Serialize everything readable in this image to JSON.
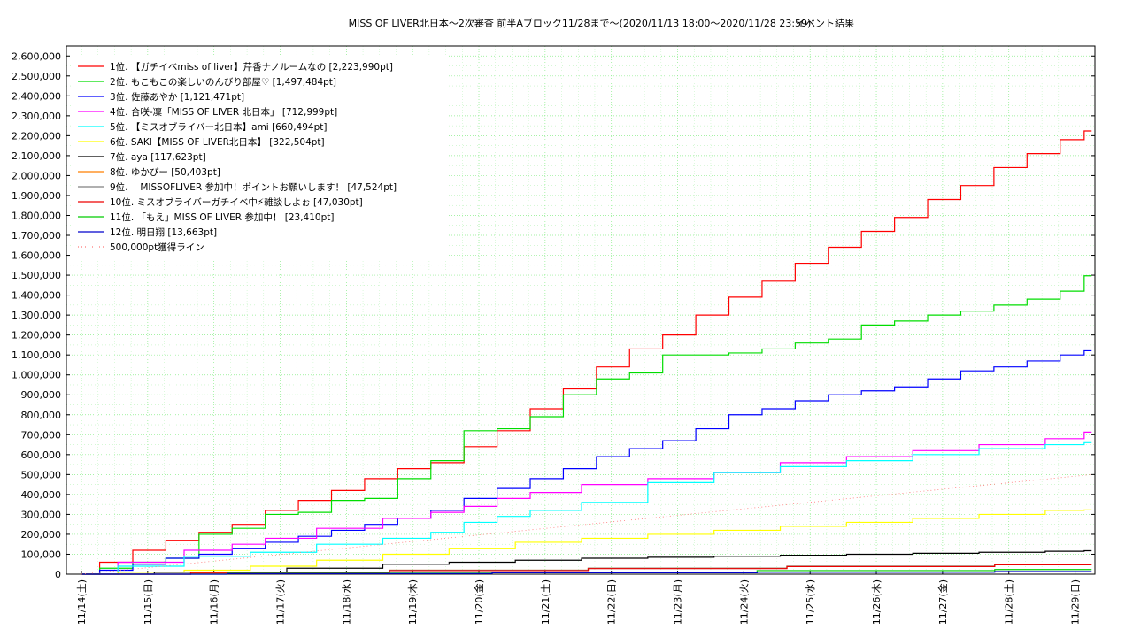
{
  "chart_data": {
    "type": "line",
    "title": "MISS OF LIVER北日本〜2次審査 前半Aブロック11/28まで〜(2020/11/13 18:00〜2020/11/28 23:59)",
    "subtitle": "イベント結果",
    "ylim": [
      0,
      2650000
    ],
    "xlim": [
      0,
      15.3
    ],
    "yticks": [
      0,
      100000,
      200000,
      300000,
      400000,
      500000,
      600000,
      700000,
      800000,
      900000,
      1000000,
      1100000,
      1200000,
      1300000,
      1400000,
      1500000,
      1600000,
      1700000,
      1800000,
      1900000,
      2000000,
      2100000,
      2200000,
      2300000,
      2400000,
      2500000,
      2600000
    ],
    "ytick_labels": [
      "0",
      "100,000",
      "200,000",
      "300,000",
      "400,000",
      "500,000",
      "600,000",
      "700,000",
      "800,000",
      "900,000",
      "1,000,000",
      "1,100,000",
      "1,200,000",
      "1,300,000",
      "1,400,000",
      "1,500,000",
      "1,600,000",
      "1,700,000",
      "1,800,000",
      "1,900,000",
      "2,000,000",
      "2,100,000",
      "2,200,000",
      "2,300,000",
      "2,400,000",
      "2,500,000",
      "2,600,000"
    ],
    "x_categories": [
      "11/14(土)",
      "11/15(日)",
      "11/16(月)",
      "11/17(火)",
      "11/18(水)",
      "11/19(木)",
      "11/20(金)",
      "11/21(土)",
      "11/22(日)",
      "11/23(月)",
      "11/24(火)",
      "11/25(水)",
      "11/26(木)",
      "11/27(金)",
      "11/28(土)",
      "11/29(日)"
    ],
    "grid": true,
    "legend_position": "top-left",
    "series": [
      {
        "name": "1位. 【ガチイベmiss of liver】芹香ナノルームなの [2,223,990pt]",
        "color": "#ff0000",
        "x": [
          0,
          0.5,
          1,
          1.5,
          2,
          2.5,
          3,
          3.5,
          4,
          4.5,
          5,
          5.5,
          6,
          6.5,
          7,
          7.5,
          8,
          8.5,
          9,
          9.5,
          10,
          10.5,
          11,
          11.5,
          12,
          12.5,
          13,
          13.5,
          14,
          14.5,
          15,
          15.25
        ],
        "y": [
          0,
          60000,
          120000,
          170000,
          210000,
          250000,
          320000,
          370000,
          420000,
          480000,
          530000,
          560000,
          640000,
          720000,
          830000,
          930000,
          1040000,
          1130000,
          1200000,
          1300000,
          1390000,
          1470000,
          1560000,
          1640000,
          1720000,
          1790000,
          1880000,
          1950000,
          2040000,
          2110000,
          2180000,
          2224000
        ]
      },
      {
        "name": "2位. もこもこの楽しいのんびり部屋♡ [1,497,484pt]",
        "color": "#00dd00",
        "x": [
          0,
          0.5,
          1,
          1.5,
          2,
          2.5,
          3,
          3.5,
          4,
          4.5,
          5,
          5.5,
          6,
          6.5,
          7,
          7.5,
          8,
          8.5,
          9,
          9.5,
          10,
          10.5,
          11,
          11.5,
          12,
          12.5,
          13,
          13.5,
          14,
          14.5,
          15,
          15.25
        ],
        "y": [
          0,
          30000,
          60000,
          80000,
          200000,
          230000,
          300000,
          310000,
          370000,
          380000,
          480000,
          570000,
          720000,
          730000,
          790000,
          900000,
          980000,
          1010000,
          1100000,
          1100000,
          1110000,
          1130000,
          1160000,
          1180000,
          1250000,
          1270000,
          1300000,
          1320000,
          1350000,
          1380000,
          1420000,
          1497000
        ]
      },
      {
        "name": "3位. 佐藤あやか [1,121,471pt]",
        "color": "#0000ff",
        "x": [
          0,
          0.5,
          1,
          1.5,
          2,
          2.5,
          3,
          3.5,
          4,
          4.5,
          5,
          5.5,
          6,
          6.5,
          7,
          7.5,
          8,
          8.5,
          9,
          9.5,
          10,
          10.5,
          11,
          11.5,
          12,
          12.5,
          13,
          13.5,
          14,
          14.5,
          15,
          15.25
        ],
        "y": [
          0,
          20000,
          50000,
          80000,
          100000,
          130000,
          160000,
          190000,
          220000,
          250000,
          280000,
          320000,
          380000,
          430000,
          480000,
          530000,
          590000,
          630000,
          670000,
          730000,
          800000,
          830000,
          870000,
          900000,
          920000,
          940000,
          980000,
          1020000,
          1040000,
          1070000,
          1100000,
          1121000
        ]
      },
      {
        "name": "4位. 合咲-凜「MISS OF LIVER 北日本」 [712,999pt]",
        "color": "#ff00ff",
        "x": [
          0,
          1,
          2,
          2.5,
          3,
          4,
          5,
          5.5,
          6,
          6.5,
          7,
          8,
          9,
          10,
          11,
          12,
          13,
          14,
          15,
          15.25
        ],
        "y": [
          0,
          60000,
          120000,
          150000,
          180000,
          230000,
          280000,
          310000,
          340000,
          380000,
          410000,
          450000,
          480000,
          510000,
          560000,
          590000,
          620000,
          650000,
          680000,
          713000
        ]
      },
      {
        "name": "5位. 【ミスオブライバー北日本】ami [660,494pt]",
        "color": "#00ffff",
        "x": [
          0,
          1,
          2,
          3,
          4,
          5,
          5.5,
          6,
          6.5,
          7,
          8,
          9,
          10,
          11,
          12,
          13,
          14,
          15,
          15.25
        ],
        "y": [
          0,
          40000,
          90000,
          110000,
          150000,
          180000,
          210000,
          260000,
          290000,
          320000,
          360000,
          460000,
          510000,
          540000,
          570000,
          600000,
          630000,
          650000,
          660000
        ]
      },
      {
        "name": "6位. SAKI【MISS OF LIVER北日本】 [322,504pt]",
        "color": "#ffff00",
        "x": [
          0,
          1,
          2,
          3,
          4,
          5,
          6,
          7,
          8,
          9,
          10,
          11,
          12,
          13,
          14,
          15,
          15.25
        ],
        "y": [
          0,
          10000,
          20000,
          40000,
          70000,
          100000,
          130000,
          160000,
          180000,
          200000,
          220000,
          240000,
          260000,
          280000,
          300000,
          320000,
          322500
        ]
      },
      {
        "name": "7位. aya [117,623pt]",
        "color": "#000000",
        "x": [
          0,
          2,
          4,
          5,
          6,
          7,
          8,
          9,
          10,
          11,
          12,
          13,
          14,
          15,
          15.25
        ],
        "y": [
          0,
          10000,
          30000,
          50000,
          60000,
          70000,
          80000,
          85000,
          90000,
          95000,
          100000,
          105000,
          110000,
          115000,
          117600
        ]
      },
      {
        "name": "8位. ゆかぴー [50,403pt]",
        "color": "#ff7f00",
        "x": [
          0,
          3,
          6,
          9,
          12,
          15.25
        ],
        "y": [
          0,
          5000,
          20000,
          30000,
          40000,
          50400
        ]
      },
      {
        "name": "9位. 　MISSOFLIVER 参加中！ポイントお願いします！ [47,524pt]",
        "color": "#808080",
        "x": [
          0,
          3,
          6,
          9,
          12,
          15.25
        ],
        "y": [
          0,
          10000,
          20000,
          30000,
          40000,
          47500
        ]
      },
      {
        "name": "10位. ミスオブライバーガチイベ中⚡雑談しよぉ [47,030pt]",
        "color": "#ee0000",
        "x": [
          0,
          3,
          6,
          9,
          12,
          15.25
        ],
        "y": [
          0,
          8000,
          18000,
          28000,
          38000,
          47000
        ]
      },
      {
        "name": "11位. 「もえ」MISS OF LIVER 参加中！ [23,410pt]",
        "color": "#00cc00",
        "x": [
          0,
          4,
          8,
          12,
          15.25
        ],
        "y": [
          0,
          5000,
          10000,
          18000,
          23400
        ]
      },
      {
        "name": "12位. 明日翔 [13,663pt]",
        "color": "#0000cc",
        "x": [
          0,
          4,
          8,
          12,
          15.25
        ],
        "y": [
          0,
          3000,
          7000,
          10000,
          13700
        ]
      },
      {
        "name": "500,000pt獲得ライン",
        "color": "#ff7777",
        "dashed": true,
        "x": [
          0,
          15.25
        ],
        "y": [
          0,
          500000
        ]
      }
    ]
  }
}
